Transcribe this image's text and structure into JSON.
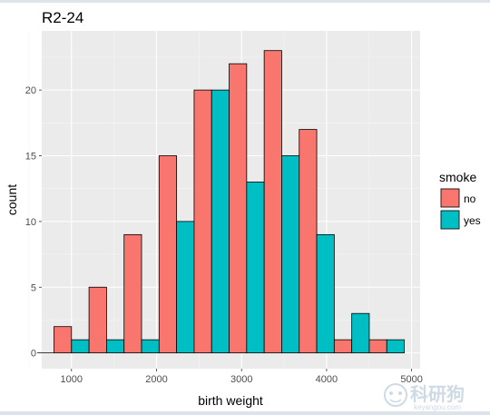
{
  "chart_data": {
    "type": "bar",
    "title": "R2-24",
    "xlabel": "birth weight",
    "ylabel": "count",
    "xlim": [
      650,
      5100
    ],
    "ylim": [
      -1.2,
      24.5
    ],
    "x_ticks": [
      1000,
      2000,
      3000,
      4000,
      5000
    ],
    "x_tick_labels": [
      "1000",
      "2000",
      "3000",
      "4000",
      "5000"
    ],
    "y_ticks": [
      0,
      5,
      10,
      15,
      20
    ],
    "y_tick_labels": [
      "0",
      "5",
      "10",
      "15",
      "20"
    ],
    "grid": true,
    "bin_width": 412,
    "bin_centers": [
      1000,
      1412,
      1824,
      2236,
      2648,
      3060,
      3472,
      3884,
      4296,
      4708
    ],
    "baseline_range": [
      788,
      4170
    ],
    "legend": {
      "title": "smoke",
      "position": "right"
    },
    "series": [
      {
        "name": "no",
        "color": "#f8766d",
        "values": [
          2,
          5,
          9,
          15,
          20,
          22,
          23,
          17,
          1,
          1
        ]
      },
      {
        "name": "yes",
        "color": "#00bfc4",
        "values": [
          1,
          1,
          1,
          10,
          20,
          13,
          15,
          9,
          3,
          1
        ]
      }
    ]
  },
  "watermark": {
    "text": "科研狗",
    "subtext": "keyangou.com"
  }
}
